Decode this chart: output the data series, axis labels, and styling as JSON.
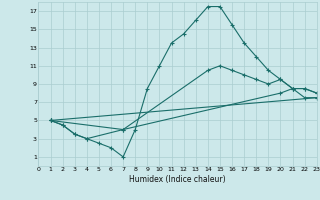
{
  "bg_color": "#cce8ea",
  "grid_color": "#aacdd0",
  "line_color": "#1a6e6a",
  "xlabel": "Humidex (Indice chaleur)",
  "xlim": [
    0,
    23
  ],
  "ylim": [
    0,
    18
  ],
  "xticks": [
    0,
    1,
    2,
    3,
    4,
    5,
    6,
    7,
    8,
    9,
    10,
    11,
    12,
    13,
    14,
    15,
    16,
    17,
    18,
    19,
    20,
    21,
    22,
    23
  ],
  "yticks": [
    1,
    3,
    5,
    7,
    9,
    11,
    13,
    15,
    17
  ],
  "line1_x": [
    1,
    2,
    3,
    4,
    5,
    6,
    7,
    8,
    9,
    10,
    11,
    12,
    13,
    14,
    15,
    16,
    17,
    18,
    19,
    20,
    21,
    22,
    23
  ],
  "line1_y": [
    5,
    4.5,
    3.5,
    3,
    2.5,
    2,
    1,
    4,
    8.5,
    11,
    13.5,
    14.5,
    16,
    17.5,
    17.5,
    15.5,
    13.5,
    12,
    10.5,
    9.5,
    8.5,
    7.5,
    7.5
  ],
  "line2_x": [
    1,
    2,
    3,
    4,
    7,
    14,
    15,
    16,
    17,
    18,
    19,
    20,
    21,
    22,
    23
  ],
  "line2_y": [
    5,
    4.5,
    3.5,
    3,
    4,
    10.5,
    11,
    10.5,
    10.0,
    9.5,
    9.0,
    9.5,
    8.5,
    8.5,
    8.0
  ],
  "line3_x": [
    1,
    23
  ],
  "line3_y": [
    5,
    7.5
  ],
  "line4_x": [
    1,
    7,
    20,
    21,
    22,
    23
  ],
  "line4_y": [
    5,
    4.0,
    8.0,
    8.5,
    8.5,
    8.0
  ]
}
